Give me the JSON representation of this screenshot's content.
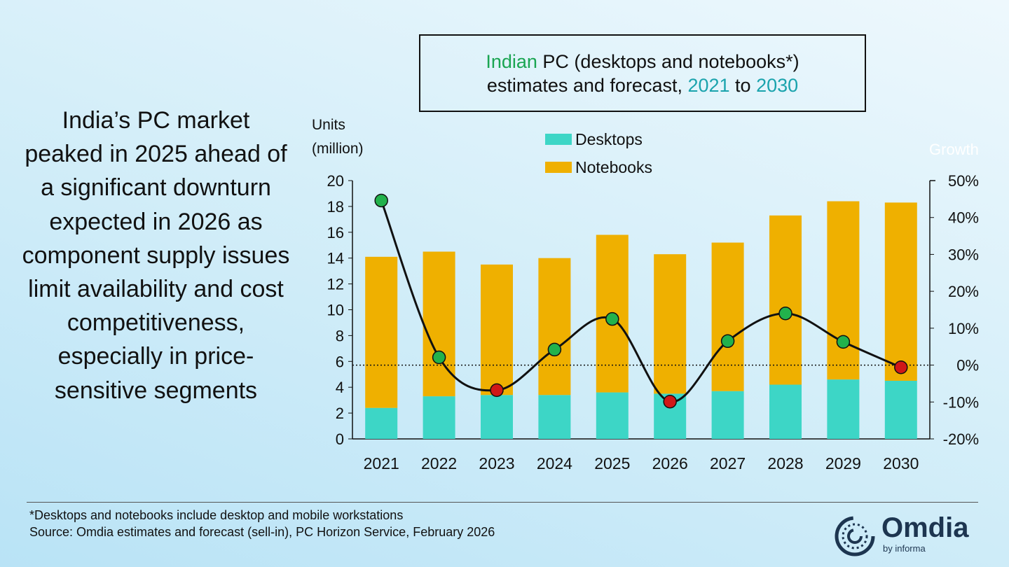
{
  "headline": "India’s PC market peaked in 2025 ahead of a significant downturn expected in 2026 as component supply issues limit availability and cost competitiveness, especially in price-sensitive segments",
  "title": {
    "p1": "Indian",
    "p2": " PC (desktops and notebooks*)",
    "p3": "estimates and forecast, ",
    "p4": "2021",
    "p5": " to ",
    "p6": "2030"
  },
  "footer": {
    "note": "*Desktops and notebooks include desktop and mobile workstations",
    "source": "Source: Omdia estimates and forecast (sell-in), PC Horizon Service, February 2026"
  },
  "logo": {
    "name": "Omdia",
    "tagline": "by informa"
  },
  "chart_data": {
    "type": "bar",
    "stacked": true,
    "categories": [
      "2021",
      "2022",
      "2023",
      "2024",
      "2025",
      "2026",
      "2027",
      "2028",
      "2029",
      "2030"
    ],
    "series": [
      {
        "name": "Desktops",
        "color": "#3dd6c6",
        "values": [
          2.4,
          3.3,
          3.4,
          3.4,
          3.6,
          3.5,
          3.7,
          4.2,
          4.6,
          4.5
        ]
      },
      {
        "name": "Notebooks",
        "color": "#efb000",
        "values": [
          11.7,
          11.2,
          10.1,
          10.6,
          12.2,
          10.8,
          11.5,
          13.1,
          13.8,
          13.8
        ]
      }
    ],
    "line_series": {
      "name": "Growth",
      "axis": "right",
      "values": [
        44.6,
        2.1,
        -6.8,
        4.2,
        12.5,
        -9.9,
        6.5,
        14.0,
        6.3,
        -0.6
      ],
      "positive_color": "#22b24c",
      "negative_color": "#d01818"
    },
    "ylabel": "Units (million)",
    "ylabel_lines": [
      "Units",
      "(million)"
    ],
    "y2label": "Growth",
    "ylim": [
      0,
      20
    ],
    "yticks": [
      "0",
      "2",
      "4",
      "6",
      "8",
      "10",
      "12",
      "14",
      "16",
      "18",
      "20"
    ],
    "y2lim": [
      -20,
      50
    ],
    "y2ticks": [
      "-20%",
      "-10%",
      "0%",
      "10%",
      "20%",
      "30%",
      "40%",
      "50%"
    ],
    "legend": "top-center",
    "reference_line": 0
  }
}
